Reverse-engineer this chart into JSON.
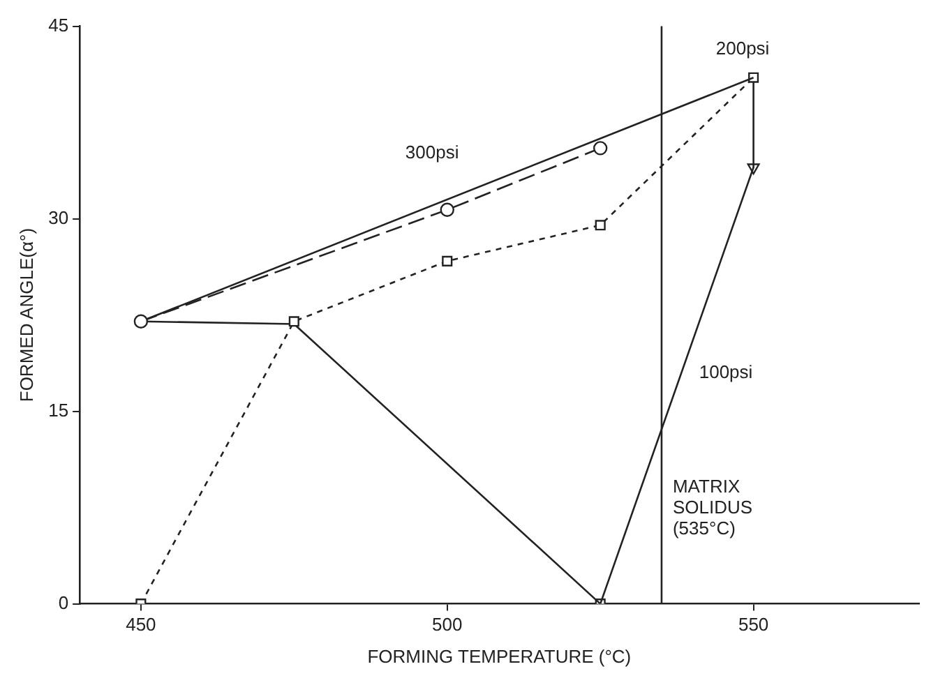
{
  "chart_data": {
    "type": "line",
    "xlabel": "FORMING TEMPERATURE (°C)",
    "ylabel": "FORMED ANGLE(α°)",
    "xlim": [
      440,
      577
    ],
    "xticks": [
      450,
      500,
      550
    ],
    "ylim": [
      0,
      45
    ],
    "yticks": [
      0,
      15,
      30,
      45
    ],
    "grid": false,
    "legend": false,
    "series": [
      {
        "color": "#222222",
        "x": [
          450,
          500,
          525
        ],
        "values": [
          22,
          30.7,
          35.5
        ],
        "marker": "circle",
        "line_style": "dashed"
      },
      {
        "color": "#222222",
        "x": [
          450,
          550
        ],
        "values": [
          22,
          41
        ],
        "line_style": "solid"
      },
      {
        "color": "#222222",
        "x": [
          450,
          475,
          500,
          525,
          550
        ],
        "values": [
          0,
          22,
          26.7,
          29.5,
          41
        ],
        "marker": "square",
        "line_style": "dotted"
      },
      {
        "color": "#222222",
        "x": [
          450,
          475,
          525,
          550
        ],
        "values": [
          22,
          21.8,
          0,
          34
        ],
        "line_style": "solid"
      },
      {
        "color": "#222222",
        "x": [
          550,
          550
        ],
        "values": [
          41,
          34
        ],
        "line_style": "solid"
      },
      {
        "type": "scatter",
        "color": "#222222",
        "x": [
          550
        ],
        "values": [
          34
        ],
        "marker": "triangle"
      },
      {
        "type": "scatter",
        "color": "#222222",
        "x": [
          525
        ],
        "values": [
          0
        ],
        "marker": "square"
      }
    ],
    "ref_lines": [
      {
        "axis": "x",
        "value": 535,
        "label": "MATRIX\nSOLIDUS\n(535°C)",
        "color": "#222222",
        "line_style": "solid"
      }
    ],
    "annotations": [
      "300psi",
      "200psi",
      "100psi"
    ]
  }
}
